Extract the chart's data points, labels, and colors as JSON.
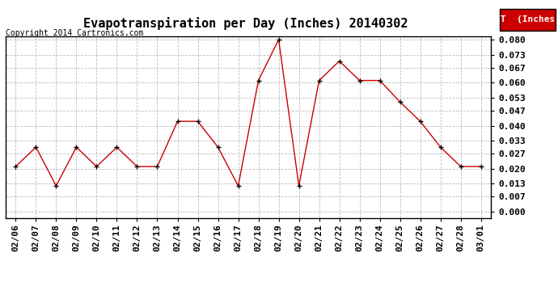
{
  "title": "Evapotranspiration per Day (Inches) 20140302",
  "copyright": "Copyright 2014 Cartronics.com",
  "legend_label": "ET  (Inches)",
  "dates": [
    "02/06",
    "02/07",
    "02/08",
    "02/09",
    "02/10",
    "02/11",
    "02/12",
    "02/13",
    "02/14",
    "02/15",
    "02/16",
    "02/17",
    "02/18",
    "02/19",
    "02/20",
    "02/21",
    "02/22",
    "02/23",
    "02/24",
    "02/25",
    "02/26",
    "02/27",
    "02/28",
    "03/01"
  ],
  "values": [
    0.021,
    0.03,
    0.012,
    0.03,
    0.021,
    0.03,
    0.021,
    0.021,
    0.042,
    0.042,
    0.03,
    0.012,
    0.061,
    0.08,
    0.012,
    0.061,
    0.07,
    0.061,
    0.061,
    0.051,
    0.042,
    0.03,
    0.021,
    0.021
  ],
  "ylim_min": -0.003,
  "ylim_max": 0.0815,
  "yticks": [
    0.0,
    0.007,
    0.013,
    0.02,
    0.027,
    0.033,
    0.04,
    0.047,
    0.053,
    0.06,
    0.067,
    0.073,
    0.08
  ],
  "line_color": "#cc0000",
  "marker_color": "#000000",
  "legend_bg": "#cc0000",
  "legend_text_color": "#ffffff",
  "bg_color": "#ffffff",
  "grid_color": "#bbbbbb",
  "title_fontsize": 11,
  "copyright_fontsize": 7,
  "tick_fontsize": 8,
  "legend_fontsize": 8
}
